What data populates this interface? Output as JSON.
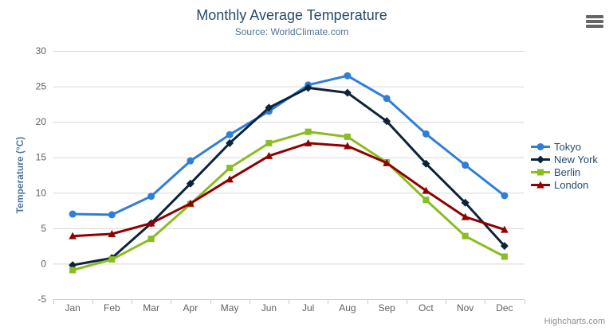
{
  "credit": "Highcharts.com",
  "icons": {
    "context_menu": "hamburger-menu-icon"
  },
  "colors": {
    "title": "#274b6d",
    "subtitle": "#4d759e",
    "axis_labels": "#606060",
    "y_axis_title": "#4d759e",
    "gridline": "#d8d8d8",
    "axis_line": "#c0d0e0",
    "legend_text": "#274b6d",
    "credit_text": "#909090",
    "menu_icon": "#666666"
  },
  "chart_data": {
    "type": "line",
    "title": "Monthly Average Temperature",
    "subtitle": "Source: WorldClimate.com",
    "xlabel": "",
    "ylabel": "Temperature (°C)",
    "categories": [
      "Jan",
      "Feb",
      "Mar",
      "Apr",
      "May",
      "Jun",
      "Jul",
      "Aug",
      "Sep",
      "Oct",
      "Nov",
      "Dec"
    ],
    "ylim": [
      -5,
      30
    ],
    "ytick_step": 5,
    "yticks": [
      -5,
      0,
      5,
      10,
      15,
      20,
      25,
      30
    ],
    "grid": true,
    "legend_position": "right",
    "series": [
      {
        "name": "Tokyo",
        "color": "#2f7ed8",
        "marker": "circle",
        "values": [
          7.0,
          6.9,
          9.5,
          14.5,
          18.2,
          21.5,
          25.2,
          26.5,
          23.3,
          18.3,
          13.9,
          9.6
        ]
      },
      {
        "name": "New York",
        "color": "#0d233a",
        "marker": "diamond",
        "values": [
          -0.2,
          0.8,
          5.7,
          11.3,
          17.0,
          22.0,
          24.8,
          24.1,
          20.1,
          14.1,
          8.6,
          2.5
        ]
      },
      {
        "name": "Berlin",
        "color": "#8bbc21",
        "marker": "square",
        "values": [
          -0.9,
          0.6,
          3.5,
          8.4,
          13.5,
          17.0,
          18.6,
          17.9,
          14.3,
          9.0,
          3.9,
          1.0
        ]
      },
      {
        "name": "London",
        "color": "#910000",
        "marker": "triangle",
        "values": [
          3.9,
          4.2,
          5.7,
          8.5,
          11.9,
          15.2,
          17.0,
          16.6,
          14.2,
          10.3,
          6.6,
          4.8
        ]
      }
    ]
  }
}
